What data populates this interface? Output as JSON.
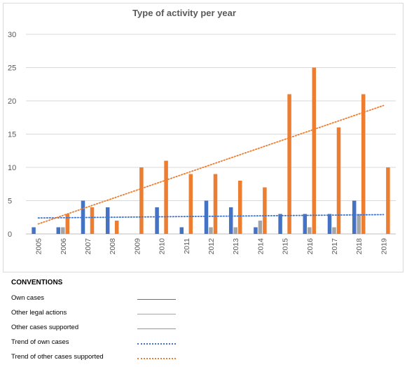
{
  "chart_data": {
    "type": "bar",
    "title": "Type of activity per year",
    "categories": [
      "2005",
      "2006",
      "2007",
      "2008",
      "2009",
      "2010",
      "2011",
      "2012",
      "2013",
      "2014",
      "2015",
      "2016",
      "2017",
      "2018",
      "2019"
    ],
    "yticks": [
      "0",
      "5",
      "10",
      "15",
      "20",
      "25",
      "30"
    ],
    "ylim": [
      0,
      30
    ],
    "grid": true,
    "series": [
      {
        "name": "Own cases",
        "color": "#4472c4",
        "values": [
          1,
          1,
          5,
          4,
          0,
          4,
          1,
          5,
          4,
          1,
          3,
          3,
          3,
          5,
          0
        ]
      },
      {
        "name": "Other legal actions",
        "color": "#a5a5a5",
        "values": [
          0,
          1,
          0,
          0,
          0,
          0,
          0,
          1,
          1,
          2,
          0,
          1,
          1,
          3,
          0
        ]
      },
      {
        "name": "Other cases supported",
        "color": "#ed7d31",
        "values": [
          0,
          3,
          4,
          2,
          10,
          11,
          9,
          9,
          8,
          7,
          21,
          25,
          16,
          21,
          10
        ]
      }
    ],
    "trendlines": [
      {
        "name": "Trend of own cases",
        "color": "#4472c4",
        "start": 2.4,
        "end": 2.9
      },
      {
        "name": "Trend of other cases supported",
        "color": "#ed7d31",
        "start": 1.5,
        "end": 19.3
      }
    ]
  },
  "legend": {
    "title": "CONVENTIONS",
    "items": [
      {
        "label": "Own cases",
        "color": "#4472c4",
        "style": "solid"
      },
      {
        "label": "Other legal actions",
        "color": "#a5a5a5",
        "style": "solid"
      },
      {
        "label": "Other cases supported",
        "color": "#ed7d31",
        "style": "solid"
      },
      {
        "label": "Trend of own cases",
        "color": "#4472c4",
        "style": "dotted"
      },
      {
        "label": "Trend of other cases supported",
        "color": "#ed7d31",
        "style": "dotted"
      }
    ]
  }
}
